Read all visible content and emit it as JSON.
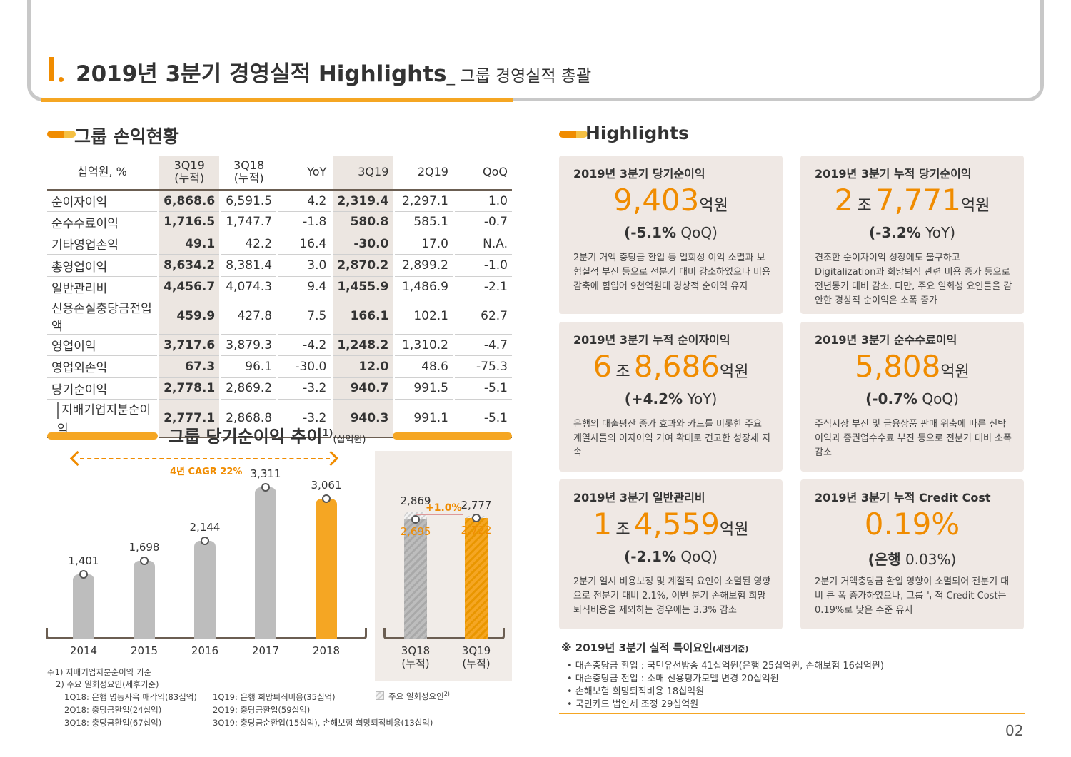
{
  "header": {
    "title": "2019년 3분기 경영실적 Highlights",
    "subtitle": "_ 그룹 경영실적 총괄"
  },
  "pl_section": {
    "title": "그룹 손익현황",
    "columns": [
      "십억원, %",
      "3Q19\n(누적)",
      "3Q18\n(누적)",
      "YoY",
      "3Q19",
      "2Q19",
      "QoQ"
    ],
    "rows": [
      {
        "label": "순이자이익",
        "values": [
          "6,868.6",
          "6,591.5",
          "4.2",
          "2,319.4",
          "2,297.1",
          "1.0"
        ]
      },
      {
        "label": "순수수료이익",
        "values": [
          "1,716.5",
          "1,747.7",
          "-1.8",
          "580.8",
          "585.1",
          "-0.7"
        ]
      },
      {
        "label": "기타영업손익",
        "values": [
          "49.1",
          "42.2",
          "16.4",
          "-30.0",
          "17.0",
          "N.A."
        ]
      },
      {
        "label": "총영업이익",
        "values": [
          "8,634.2",
          "8,381.4",
          "3.0",
          "2,870.2",
          "2,899.2",
          "-1.0"
        ]
      },
      {
        "label": "일반관리비",
        "values": [
          "4,456.7",
          "4,074.3",
          "9.4",
          "1,455.9",
          "1,486.9",
          "-2.1"
        ]
      },
      {
        "label": "신용손실충당금전입액",
        "values": [
          "459.9",
          "427.8",
          "7.5",
          "166.1",
          "102.1",
          "62.7"
        ]
      },
      {
        "label": "영업이익",
        "values": [
          "3,717.6",
          "3,879.3",
          "-4.2",
          "1,248.2",
          "1,310.2",
          "-4.7"
        ]
      },
      {
        "label": "영업외손익",
        "values": [
          "67.3",
          "96.1",
          "-30.0",
          "12.0",
          "48.6",
          "-75.3"
        ]
      },
      {
        "label": "당기순이익",
        "values": [
          "2,778.1",
          "2,869.2",
          "-3.2",
          "940.7",
          "991.5",
          "-5.1"
        ]
      },
      {
        "label": "지배기업지분순이익",
        "values": [
          "2,777.1",
          "2,868.8",
          "-3.2",
          "940.3",
          "991.1",
          "-5.1"
        ]
      }
    ]
  },
  "chart_section": {
    "title": "그룹 당기순이익 추이",
    "sup": "1)",
    "unit": "(십억원)",
    "cagr": "4년 CAGR 22%",
    "yoy_change": "+1.0%",
    "legend_label": "주요 일회성요인",
    "legend_sup": "2)"
  },
  "chart_data": [
    {
      "type": "bar",
      "categories": [
        "2014",
        "2015",
        "2016",
        "2017",
        "2018"
      ],
      "values": [
        1401,
        1698,
        2144,
        3311,
        3061
      ],
      "labels": [
        "1,401",
        "1,698",
        "2,144",
        "3,311",
        "3,061"
      ],
      "highlight_color": "#f5a623",
      "base_color": "#bdbdbd"
    },
    {
      "type": "bar",
      "categories": [
        "3Q18\n(누적)",
        "3Q19\n(누적)"
      ],
      "series": [
        {
          "values": [
            2869,
            2777
          ],
          "labels": [
            "2,869",
            "2,777"
          ]
        },
        {
          "values": [
            2695,
            2722
          ],
          "labels": [
            "2,695",
            "2,722"
          ]
        }
      ]
    }
  ],
  "footnotes": [
    "주1) 지배기업지분순이익 기준",
    "2) 주요 일회성요인(세후기준)",
    "1Q18: 은행 명동사옥 매각익(83십억)",
    "2Q18: 충당금환입(24십억)",
    "3Q18: 충당금환입(67십억)",
    "1Q19: 은행 희망퇴직비용(35십억)",
    "2Q19: 충당금환입(59십억)",
    "3Q19: 충당금순환입(15십억), 손해보험 희망퇴직비용(13십억)"
  ],
  "highlights": {
    "title": "Highlights",
    "cards": [
      {
        "title": "2019년 3분기 당기순이익",
        "big_pre": "",
        "big_pre_unit": "",
        "big": "9,403",
        "unit": "억원",
        "sub_val": "(-5.1%",
        "sub_tag": "QoQ)",
        "desc": "2분기 거액 충당금 환입 등 일회성 이익 소멸과 보험실적 부진 등으로 전분기 대비 감소하였으나 비용감축에 힘입어 9천억원대 경상적 순이익 유지"
      },
      {
        "title": "2019년 3분기 누적 당기순이익",
        "big_pre": "2",
        "big_pre_unit": "조",
        "big": "7,771",
        "unit": "억원",
        "sub_val": "(-3.2%",
        "sub_tag": "YoY)",
        "desc": "견조한 순이자이익 성장에도 불구하고 Digitalization과 희망퇴직 관련 비용 증가 등으로 전년동기 대비 감소. 다만, 주요 일회성 요인들을 감안한 경상적 순이익은 소폭 증가"
      },
      {
        "title": "2019년 3분기 누적 순이자이익",
        "big_pre": "6",
        "big_pre_unit": "조",
        "big": "8,686",
        "unit": "억원",
        "sub_val": "(+4.2%",
        "sub_tag": "YoY)",
        "desc": "은행의 대출평잔 증가 효과와 카드를 비롯한 주요 계열사들의 이자이익 기여 확대로 견고한 성장세 지속"
      },
      {
        "title": "2019년 3분기 순수수료이익",
        "big_pre": "",
        "big_pre_unit": "",
        "big": "5,808",
        "unit": "억원",
        "sub_val": "(-0.7%",
        "sub_tag": "QoQ)",
        "desc": "주식시장 부진 및 금융상품 판매 위축에 따른 신탁이익과 증권업수수료 부진 등으로 전분기 대비 소폭 감소"
      },
      {
        "title": "2019년 3분기 일반관리비",
        "big_pre": "1",
        "big_pre_unit": "조",
        "big": "4,559",
        "unit": "억원",
        "sub_val": "(-2.1%",
        "sub_tag": "QoQ)",
        "desc": "2분기 일시 비용보정 및 계절적 요인이 소멸된 영향으로 전분기 대비 2.1%, 이번 분기 손해보험 희망퇴직비용을 제외하는 경우에는 3.3% 감소"
      },
      {
        "title": "2019년 3분기 누적 Credit Cost",
        "big_pre": "",
        "big_pre_unit": "",
        "big": "0.19%",
        "unit": "",
        "sub_val": "(은행",
        "sub_tag": "0.03%)",
        "desc": "2분기 거액충당금 환입 영향이 소멸되어 전분기 대비 큰 폭 증가하였으나, 그룹 누적 Credit Cost는 0.19%로 낮은 수준 유지"
      }
    ]
  },
  "special_factors": {
    "title": "※ 2019년 3분기 실적 특이요인",
    "title_note": "(세전기준)",
    "items": [
      "• 대손충당금 환입 : 국민유선방송 41십억원(은행 25십억원, 손해보험 16십억원)",
      "• 대손충당금 전입 : 소매 신용평가모델 변경 20십억원",
      "• 손해보험 희망퇴직비용 18십억원",
      "• 국민카드 법인세 조정 29십억원"
    ]
  },
  "page_number": "02"
}
